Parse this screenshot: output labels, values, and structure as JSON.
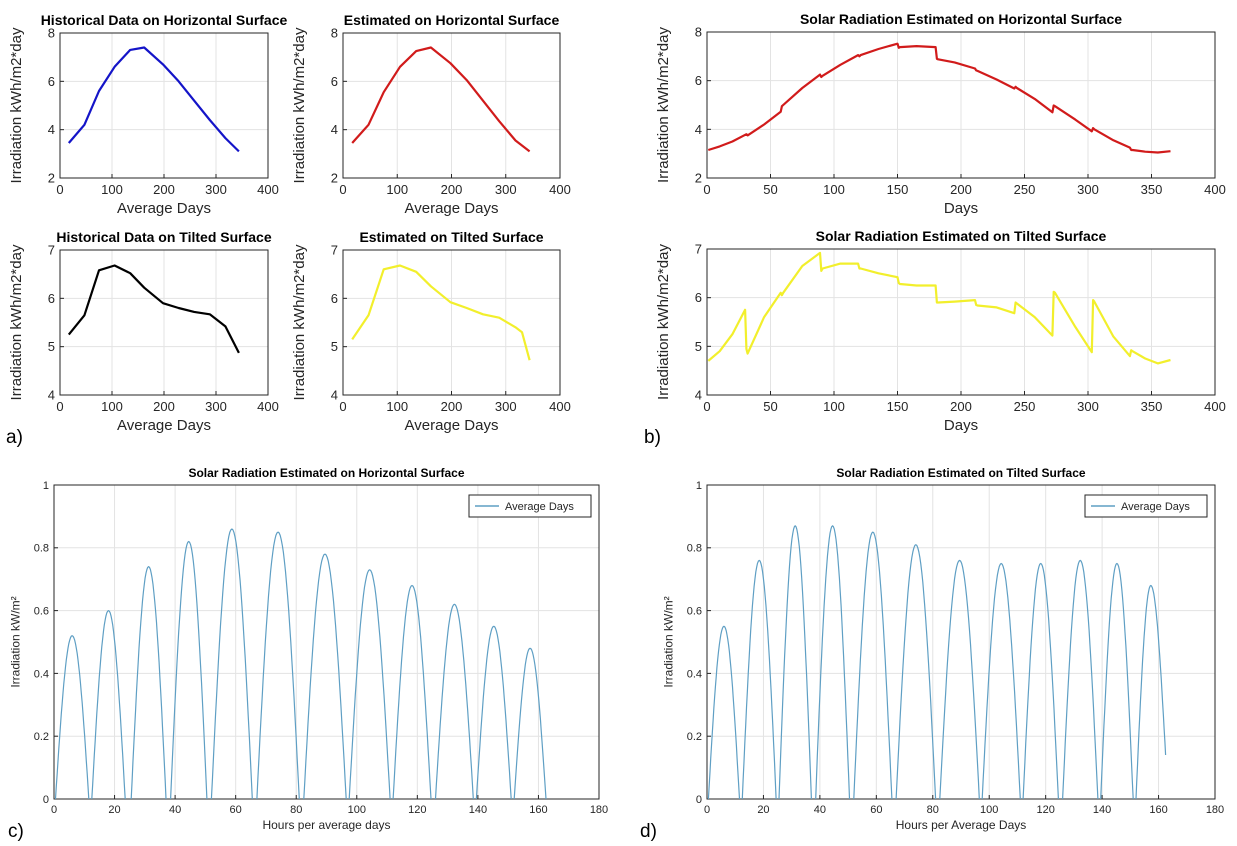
{
  "panel_labels": [
    "a)",
    "b)",
    "c)",
    "d)"
  ],
  "chart_data": [
    {
      "id": "a1",
      "type": "line",
      "panel": "a)",
      "title": "Historical Data on Horizontal Surface",
      "xlabel": "Average Days",
      "ylabel": "Irradiation kWh/m2*day",
      "xlim": [
        0,
        400
      ],
      "ylim": [
        2,
        8
      ],
      "xticks": [
        0,
        100,
        200,
        300,
        400
      ],
      "yticks": [
        2,
        4,
        6,
        8
      ],
      "grid": true,
      "series": [
        {
          "color": "#1414c8",
          "x": [
            17,
            47,
            75,
            105,
            135,
            162,
            198,
            228,
            258,
            288,
            318,
            344
          ],
          "y": [
            3.45,
            4.2,
            5.6,
            6.6,
            7.3,
            7.4,
            6.7,
            6.0,
            5.2,
            4.4,
            3.65,
            3.1
          ]
        }
      ]
    },
    {
      "id": "a2",
      "type": "line",
      "panel": "a)",
      "title": "Estimated on Horizontal Surface",
      "xlabel": "Average Days",
      "ylabel": "Irradiation kWh/m2*day",
      "xlim": [
        0,
        400
      ],
      "ylim": [
        2,
        8
      ],
      "xticks": [
        0,
        100,
        200,
        300,
        400
      ],
      "yticks": [
        2,
        4,
        6,
        8
      ],
      "grid": true,
      "series": [
        {
          "color": "#d11b1b",
          "x": [
            17,
            47,
            75,
            105,
            135,
            162,
            198,
            228,
            258,
            288,
            318,
            344
          ],
          "y": [
            3.45,
            4.2,
            5.55,
            6.6,
            7.25,
            7.4,
            6.75,
            6.05,
            5.2,
            4.35,
            3.55,
            3.1
          ]
        }
      ]
    },
    {
      "id": "a3",
      "type": "line",
      "panel": "a)",
      "title": "Historical Data on Tilted Surface",
      "xlabel": "Average Days",
      "ylabel": "Irradiation kWh/m2*day",
      "xlim": [
        0,
        400
      ],
      "ylim": [
        4,
        7
      ],
      "xticks": [
        0,
        100,
        200,
        300,
        400
      ],
      "yticks": [
        4,
        5,
        6,
        7
      ],
      "grid": true,
      "series": [
        {
          "color": "#000000",
          "x": [
            17,
            47,
            75,
            105,
            135,
            162,
            198,
            228,
            258,
            288,
            318,
            344
          ],
          "y": [
            5.25,
            5.65,
            6.58,
            6.68,
            6.52,
            6.22,
            5.9,
            5.8,
            5.72,
            5.67,
            5.42,
            4.87
          ]
        }
      ]
    },
    {
      "id": "a4",
      "type": "line",
      "panel": "a)",
      "title": "Estimated on Tilted Surface",
      "xlabel": "Average Days",
      "ylabel": "Irradiation kWh/m2*day",
      "xlim": [
        0,
        400
      ],
      "ylim": [
        4,
        7
      ],
      "xticks": [
        0,
        100,
        200,
        300,
        400
      ],
      "yticks": [
        4,
        5,
        6,
        7
      ],
      "grid": true,
      "series": [
        {
          "color": "#f2ef2c",
          "x": [
            17,
            47,
            75,
            105,
            135,
            162,
            198,
            228,
            258,
            288,
            318,
            330,
            344
          ],
          "y": [
            5.15,
            5.65,
            6.6,
            6.68,
            6.55,
            6.25,
            5.92,
            5.8,
            5.67,
            5.6,
            5.4,
            5.3,
            4.72
          ]
        }
      ]
    },
    {
      "id": "b1",
      "type": "line",
      "panel": "b)",
      "title": "Solar Radiation Estimated on Horizontal Surface",
      "xlabel": "Days",
      "ylabel": "Irradiation kWh/m2*day",
      "xlim": [
        0,
        400
      ],
      "ylim": [
        2,
        8
      ],
      "xticks": [
        0,
        50,
        100,
        150,
        200,
        250,
        300,
        350,
        400
      ],
      "yticks": [
        2,
        4,
        6,
        8
      ],
      "grid": true,
      "series": [
        {
          "color": "#d11b1b",
          "x": [
            1,
            10,
            20,
            31,
            32,
            45,
            58,
            59,
            60,
            75,
            89,
            90,
            91,
            105,
            119,
            120,
            121,
            135,
            150,
            151,
            152,
            165,
            180,
            181,
            182,
            195,
            211,
            212,
            213,
            228,
            242,
            243,
            244,
            258,
            272,
            273,
            274,
            290,
            303,
            304,
            305,
            320,
            333,
            334,
            335,
            345,
            355,
            365
          ],
          "y": [
            3.15,
            3.3,
            3.5,
            3.8,
            3.75,
            4.2,
            4.72,
            4.95,
            5.0,
            5.7,
            6.25,
            6.15,
            6.2,
            6.65,
            7.05,
            7.0,
            7.05,
            7.3,
            7.52,
            7.35,
            7.38,
            7.42,
            7.38,
            6.9,
            6.88,
            6.75,
            6.5,
            6.42,
            6.4,
            6.05,
            5.68,
            5.75,
            5.7,
            5.25,
            4.7,
            4.98,
            4.95,
            4.4,
            3.92,
            4.05,
            4.0,
            3.55,
            3.25,
            3.15,
            3.15,
            3.08,
            3.05,
            3.1
          ]
        }
      ]
    },
    {
      "id": "b2",
      "type": "line",
      "panel": "b)",
      "title": "Solar Radiation Estimated on Tilted Surface",
      "xlabel": "Days",
      "ylabel": "Irradiation kWh/m2*day",
      "xlim": [
        0,
        400
      ],
      "ylim": [
        4,
        7
      ],
      "xticks": [
        0,
        50,
        100,
        150,
        200,
        250,
        300,
        350,
        400
      ],
      "yticks": [
        4,
        5,
        6,
        7
      ],
      "grid": true,
      "series": [
        {
          "color": "#f2ef2c",
          "x": [
            1,
            10,
            20,
            30,
            31,
            32,
            45,
            58,
            59,
            60,
            75,
            89,
            90,
            91,
            105,
            119,
            120,
            121,
            135,
            150,
            151,
            152,
            165,
            180,
            181,
            182,
            195,
            211,
            212,
            213,
            228,
            242,
            243,
            244,
            258,
            272,
            273,
            274,
            290,
            303,
            304,
            305,
            320,
            333,
            334,
            335,
            345,
            355,
            365
          ],
          "y": [
            4.7,
            4.9,
            5.25,
            5.75,
            4.95,
            4.85,
            5.6,
            6.1,
            6.05,
            6.1,
            6.65,
            6.92,
            6.55,
            6.6,
            6.7,
            6.7,
            6.6,
            6.6,
            6.5,
            6.42,
            6.3,
            6.28,
            6.25,
            6.25,
            5.9,
            5.9,
            5.92,
            5.95,
            5.85,
            5.84,
            5.8,
            5.68,
            5.9,
            5.88,
            5.6,
            5.22,
            6.12,
            6.1,
            5.4,
            4.88,
            5.95,
            5.92,
            5.2,
            4.8,
            4.92,
            4.9,
            4.75,
            4.65,
            4.72
          ]
        }
      ]
    },
    {
      "id": "c",
      "type": "line",
      "panel": "c)",
      "title": "Solar Radiation Estimated on Horizontal Surface",
      "xlabel": "Hours per average days",
      "ylabel": "Irradiation kW/m²",
      "xlim": [
        0,
        180
      ],
      "ylim": [
        0,
        1
      ],
      "xticks": [
        0,
        20,
        40,
        60,
        80,
        100,
        120,
        140,
        160,
        180
      ],
      "yticks": [
        0,
        0.2,
        0.4,
        0.6,
        0.8,
        1
      ],
      "grid": true,
      "legend": {
        "placement": "top-right",
        "entries": [
          "Average Days"
        ]
      },
      "series": [
        {
          "color": "#5f9fc4",
          "name": "Average Days",
          "cycles": [
            {
              "start": 0.5,
              "end": 11.5,
              "peak": 0.52
            },
            {
              "start": 12.5,
              "end": 23.5,
              "peak": 0.6
            },
            {
              "start": 25.5,
              "end": 37,
              "peak": 0.74
            },
            {
              "start": 38.5,
              "end": 50.5,
              "peak": 0.82
            },
            {
              "start": 52,
              "end": 65.5,
              "peak": 0.86
            },
            {
              "start": 67,
              "end": 81,
              "peak": 0.85
            },
            {
              "start": 82.5,
              "end": 96.5,
              "peak": 0.78
            },
            {
              "start": 97.5,
              "end": 111,
              "peak": 0.73
            },
            {
              "start": 112,
              "end": 124.5,
              "peak": 0.68
            },
            {
              "start": 126,
              "end": 138.5,
              "peak": 0.62
            },
            {
              "start": 139.5,
              "end": 151,
              "peak": 0.55
            },
            {
              "start": 152,
              "end": 162.5,
              "peak": 0.48
            }
          ]
        }
      ]
    },
    {
      "id": "d",
      "type": "line",
      "panel": "d)",
      "title": "Solar Radiation Estimated on Tilted Surface",
      "xlabel": "Hours per Average Days",
      "ylabel": "Irradiation kW/m²",
      "xlim": [
        0,
        180
      ],
      "ylim": [
        0,
        1
      ],
      "xticks": [
        0,
        20,
        40,
        60,
        80,
        100,
        120,
        140,
        160,
        180
      ],
      "yticks": [
        0,
        0.2,
        0.4,
        0.6,
        0.8,
        1
      ],
      "grid": true,
      "legend": {
        "placement": "top-right",
        "entries": [
          "Average Days"
        ]
      },
      "series": [
        {
          "color": "#5f9fc4",
          "name": "Average Days",
          "cycles": [
            {
              "start": 0.5,
              "end": 11.5,
              "peak": 0.55
            },
            {
              "start": 12.5,
              "end": 24.5,
              "peak": 0.76
            },
            {
              "start": 25.5,
              "end": 37,
              "peak": 0.87
            },
            {
              "start": 38.5,
              "end": 50.5,
              "peak": 0.87
            },
            {
              "start": 52,
              "end": 65.5,
              "peak": 0.85
            },
            {
              "start": 67,
              "end": 81,
              "peak": 0.81
            },
            {
              "start": 82.5,
              "end": 96.5,
              "peak": 0.76
            },
            {
              "start": 97.5,
              "end": 111,
              "peak": 0.75
            },
            {
              "start": 112,
              "end": 124.5,
              "peak": 0.75
            },
            {
              "start": 126,
              "end": 138.5,
              "peak": 0.76
            },
            {
              "start": 139.5,
              "end": 151,
              "peak": 0.75
            },
            {
              "start": 152,
              "end": 162.5,
              "peak": 0.68,
              "end_value": 0.14
            }
          ]
        }
      ]
    }
  ]
}
